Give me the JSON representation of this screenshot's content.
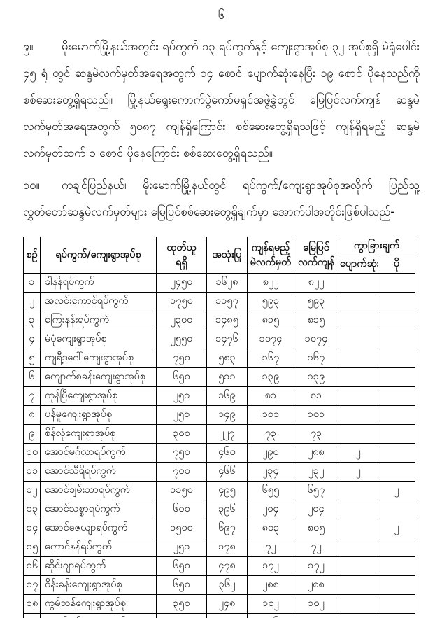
{
  "page": {
    "number": "၆"
  },
  "paragraphs": {
    "p9": {
      "label": "၉။",
      "text": "မိုးမောက်မြို့နယ်အတွင်း ရပ်ကွက် ၁၃ ရပ်ကွက်နှင့် ကျေးရွာအုပ်စု ၃၂ အုပ်စုရှိ မဲရုံပေါင်း ၄၅ ရုံ တွင် ဆန္ဒမဲလက်မှတ်အရေအတွက် ၁၄ စောင် ပျောက်ဆုံးနေပြီး ၁၉ စောင် ပိုနေသည်ကို စစ်ဆေးတွေ့ရှိရသည်။ မြို့နယ်ရွေးကောက်ပွဲကော်မရှင်အဖွဲ့ခွဲတွင် မြေပြင်လက်ကျန် ဆန္ဒမဲ လက်မှတ်အရေအတွက် ၅၀၈၇ ကျန်ရှိကြောင်း စစ်ဆေးတွေ့ရှိရသဖြင့် ကျန်ရှိရမည့် ဆန္ဒမဲ လက်မှတ်ထက် ၁ စောင် ပိုနေကြောင်း စစ်ဆေးတွေ့ရှိရသည်။"
    },
    "p10": {
      "label": "၁၀။",
      "text": "ကချင်ပြည်နယ်၊ မိုးမောက်မြို့နယ်တွင် ရပ်ကွက်/ကျေးရွာအုပ်စုအလိုက် ပြည်သူ့ လွှတ်တော်ဆန္ဒမဲလက်မှတ်များ မြေပြင်စစ်ဆေးတွေ့ရှိချက်မှာ အောက်ပါအတိုင်းဖြစ်ပါသည်-"
    }
  },
  "table": {
    "headers": {
      "sn": "စဉ်",
      "ward": "ရပ်ကွက်/ကျေးရွာအုပ်စု",
      "issued_line1": "ထုတ်ယူ",
      "issued_line2": "ရရှိ",
      "used": "အသုံးပြု",
      "required_line1": "ကျန်ရမည့်",
      "required_line2": "မဲလက်မှတ်",
      "ground_line1": "မြေပြင်",
      "ground_line2": "လက်ကျန်",
      "difference": "ကွာခြားချက်",
      "lost": "ပျောက်ဆုံး",
      "extra": "ပို"
    },
    "col_keys": [
      "sn",
      "ward",
      "issued",
      "used",
      "required-balance",
      "ground-balance",
      "lost",
      "extra"
    ],
    "rows": [
      [
        "၁",
        "ခါနန်ရပ်ကွက်",
        "၂၄၅၀",
        "၁၆၂၈",
        "၈၂၂",
        "၈၂၂",
        "",
        ""
      ],
      [
        "၂",
        "အလင်းကောင်ရပ်ကွက်",
        "၁၇၅၀",
        "၁၁၅၇",
        "၅၉၃",
        "၅၉၃",
        "",
        ""
      ],
      [
        "၃",
        "ကြေးနန်းရပ်ကွက်",
        "၂၃၀၀",
        "၁၄၈၅",
        "၈၁၅",
        "၈၁၅",
        "",
        ""
      ],
      [
        "၄",
        "မံပုံကျေးရွာအုပ်စု",
        "၂၅၅၀",
        "၁၄၇၆",
        "၁၀၇၄",
        "၁၀၇၄",
        "",
        ""
      ],
      [
        "၅",
        "ကျရီ့ဒဂေါ်ကျေးရွာအုပ်စု",
        "၇၅၀",
        "၅၈၃",
        "၁၆၇",
        "၁၆၇",
        "",
        ""
      ],
      [
        "၆",
        "ကျောက်စခန်းကျေးရွာအုပ်စု",
        "၆၅၀",
        "၅၁၁",
        "၁၃၉",
        "၁၃၉",
        "",
        ""
      ],
      [
        "၇",
        "ကုန်ပြီကျေးရွာအုပ်စု",
        "၂၅၀",
        "၁၆၉",
        "၈၁",
        "၈၁",
        "",
        ""
      ],
      [
        "၈",
        "ပန်မူကျေးရွာအုပ်စု",
        "၂၅၀",
        "၁၄၉",
        "၁၀၁",
        "၁၀၁",
        "",
        ""
      ],
      [
        "၉",
        "စိန်လုံကျေးရွာအုပ်စု",
        "၃၀၀",
        "၂၂၇",
        "၇၃",
        "၇၃",
        "",
        ""
      ],
      [
        "၁၀",
        "အောင်မင်္ဂလာရပ်ကွက်",
        "၇၅၀",
        "၄၆၀",
        "၂၉၀",
        "၂၈၈",
        "၂",
        ""
      ],
      [
        "၁၁",
        "အောင်သီရိရပ်ကွက်",
        "၇၀၀",
        "၄၆၆",
        "၂၃၄",
        "၂၃၂",
        "၂",
        ""
      ],
      [
        "၁၂",
        "အောင်ချမ်းသာရပ်ကွက်",
        "၁၁၅၀",
        "၄၉၅",
        "၆၅၅",
        "၆၅၇",
        "",
        "၂"
      ],
      [
        "၁၃",
        "အောင်သစ္စာရပ်ကွက်",
        "၆၀၀",
        "၃၉၆",
        "၂၀၄",
        "၂၀၄",
        "",
        ""
      ],
      [
        "၁၄",
        "အောင်ဇေယျာရပ်ကွက်",
        "၁၅၀၀",
        "၆၉၇",
        "၈၀၃",
        "၈၀၅",
        "",
        "၂"
      ],
      [
        "၁၅",
        "ကောင်နန်ရပ်ကွက်",
        "၂၅၀",
        "၁၇၈",
        "၇၂",
        "၇၂",
        "",
        ""
      ],
      [
        "၁၆",
        "ဆိုင်းဂျာရပ်ကွက်",
        "၆၅၀",
        "၄၇၈",
        "၁၇၂",
        "၁၇၂",
        "",
        ""
      ],
      [
        "၁၇",
        "ဝိန်းခန်းကျေးရွာအုပ်စု",
        "၆၅၀",
        "၃၆၂",
        "၂၈၈",
        "၂၈၈",
        "",
        ""
      ],
      [
        "၁၈",
        "ကွမ်ဘန်ကျေးရွာအုပ်စု",
        "၃၅၀",
        "၂၄၈",
        "၁၀၂",
        "၁၀၂",
        "",
        ""
      ],
      [
        "၁၉",
        "ကျခန်းဒပ်ကျေးရွာအုပ်စု",
        "၅၅၀",
        "၄၂၄",
        "၁၂၆",
        "၁၂၅",
        "၁",
        ""
      ]
    ]
  }
}
